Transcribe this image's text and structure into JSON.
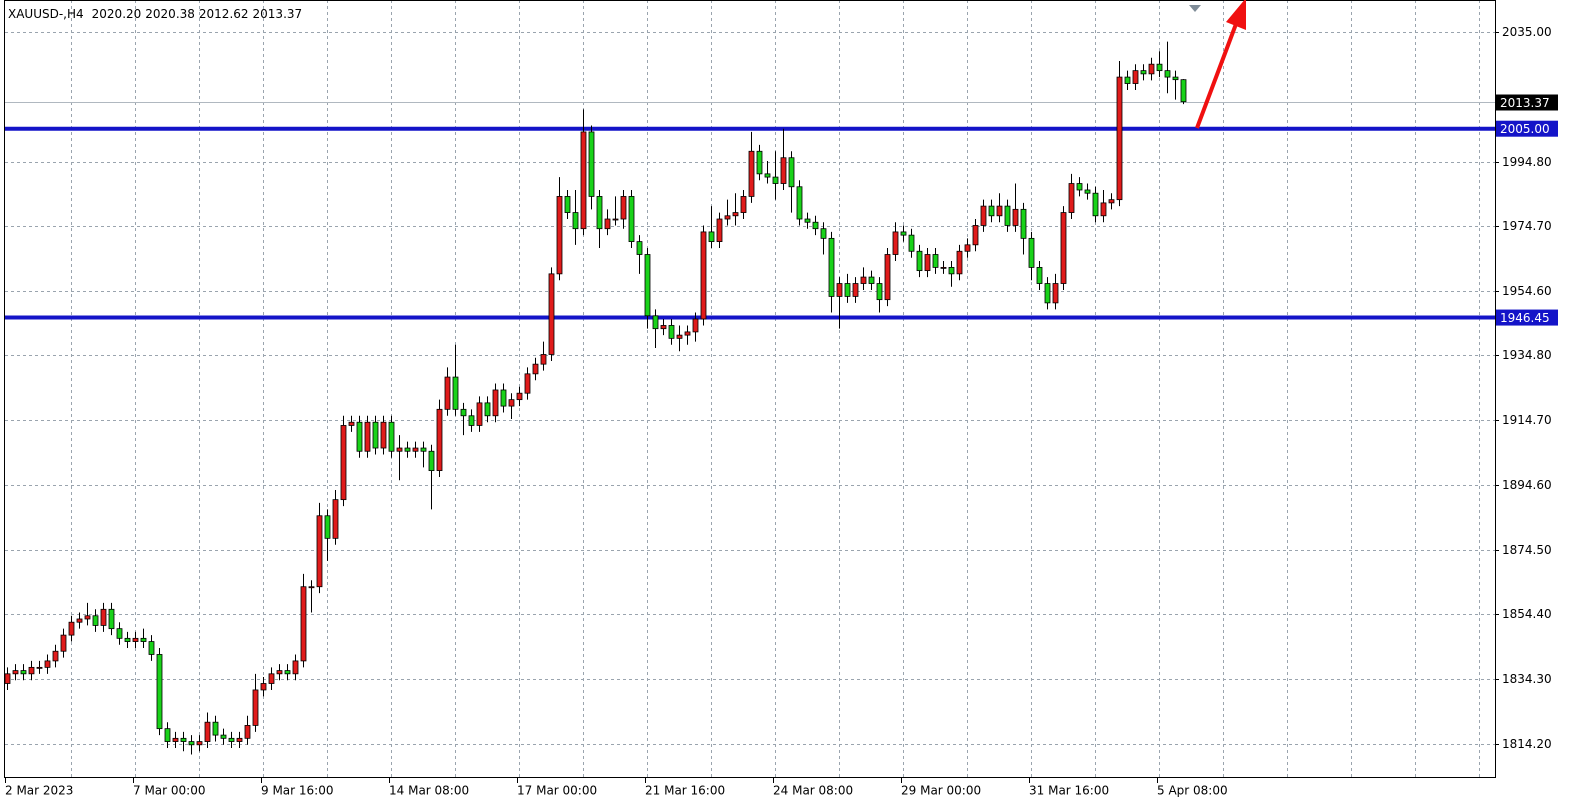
{
  "chart_data": {
    "type": "candlestick",
    "title": "XAUUSD-,H4",
    "last_labels": {
      "open": "2020.20",
      "high": "2020.38",
      "low": "2012.62",
      "close": "2013.37"
    },
    "up_color": "#e01b1b",
    "down_color": "#19d219",
    "categories": [
      "2 Mar 2023",
      null,
      null,
      null,
      null,
      null,
      null,
      null,
      null,
      null,
      null,
      null,
      null,
      null,
      null,
      null,
      "7 Mar 00:00",
      null,
      null,
      null,
      null,
      null,
      null,
      null,
      null,
      null,
      null,
      null,
      null,
      null,
      null,
      null,
      "9 Mar 16:00",
      null,
      null,
      null,
      null,
      null,
      null,
      null,
      null,
      null,
      null,
      null,
      null,
      null,
      null,
      null,
      "14 Mar 08:00",
      null,
      null,
      null,
      null,
      null,
      null,
      null,
      null,
      null,
      null,
      null,
      null,
      null,
      null,
      null,
      "17 Mar 00:00",
      null,
      null,
      null,
      null,
      null,
      null,
      null,
      null,
      null,
      null,
      null,
      null,
      null,
      null,
      null,
      "21 Mar 16:00",
      null,
      null,
      null,
      null,
      null,
      null,
      null,
      null,
      null,
      null,
      null,
      null,
      null,
      null,
      null,
      "24 Mar 08:00",
      null,
      null,
      null,
      null,
      null,
      null,
      null,
      null,
      null,
      null,
      null,
      null,
      null,
      null,
      null,
      "29 Mar 00:00",
      null,
      null,
      null,
      null,
      null,
      null,
      null,
      null,
      null,
      null,
      null,
      null,
      null,
      null,
      null,
      "31 Mar 16:00",
      null,
      null,
      null,
      null,
      null,
      null,
      null,
      null,
      null,
      null,
      null,
      null,
      null,
      null,
      null,
      "5 Apr 08:00",
      null,
      null,
      null
    ],
    "series": [
      {
        "name": "XAUUSD-,H4",
        "open": [
          1833,
          1836,
          1837,
          1836,
          1838,
          1838,
          1840,
          1843,
          1848,
          1852,
          1853,
          1854,
          1851,
          1856,
          1850,
          1847,
          1846,
          1847,
          1846,
          1842,
          1819,
          1815,
          1816,
          1815,
          1814,
          1815,
          1821,
          1817,
          1816,
          1815,
          1816,
          1820,
          1831,
          1833,
          1836,
          1837,
          1836,
          1840,
          1863,
          1863,
          1885,
          1878,
          1890,
          1913,
          1914,
          1905,
          1914,
          1906,
          1914,
          1905,
          1906,
          1905,
          1906,
          1905,
          1899,
          1918,
          1928,
          1918,
          1916,
          1913,
          1920,
          1916,
          1924,
          1919,
          1921,
          1923,
          1929,
          1932,
          1935,
          1960,
          1984,
          1979,
          1974,
          2004,
          1984,
          1974,
          1977,
          1977,
          1984,
          1970,
          1966,
          1947,
          1943,
          1944,
          1940,
          1941,
          1942,
          1946,
          1973,
          1970,
          1977,
          1978,
          1979,
          1984,
          1998,
          1991,
          1990,
          1988,
          1996,
          1987,
          1977,
          1976,
          1974,
          1971,
          1953,
          1957,
          1953,
          1957,
          1959,
          1957,
          1952,
          1966,
          1973,
          1972,
          1967,
          1961,
          1966,
          1962,
          1962,
          1960,
          1967,
          1969,
          1975,
          1981,
          1978,
          1981,
          1975,
          1980,
          1971,
          1962,
          1957,
          1951,
          1957,
          1979,
          1988,
          1986,
          1985,
          1978,
          1982,
          1983,
          2021,
          2019,
          2023,
          2022,
          2025,
          2023,
          2021,
          2020.2
        ],
        "high": [
          1838,
          1839,
          1839,
          1840,
          1840,
          1842,
          1845,
          1850,
          1854,
          1855,
          1858,
          1856,
          1858,
          1858,
          1852,
          1849,
          1849,
          1850,
          1848,
          1844,
          1821,
          1818,
          1818,
          1817,
          1817,
          1824,
          1823,
          1819,
          1818,
          1818,
          1823,
          1836,
          1835,
          1838,
          1839,
          1839,
          1842,
          1867,
          1865,
          1889,
          1887,
          1893,
          1916,
          1916,
          1916,
          1916,
          1916,
          1916,
          1916,
          1910,
          1908,
          1908,
          1908,
          1907,
          1921,
          1931,
          1938,
          1920,
          1918,
          1922,
          1922,
          1926,
          1926,
          1923,
          1925,
          1931,
          1934,
          1939,
          1962,
          1990,
          1986,
          1986,
          2011,
          2006,
          1986,
          1980,
          1984,
          1986,
          1986,
          1972,
          1968,
          1949,
          1946,
          1946,
          1944,
          1944,
          1948,
          1975,
          1981,
          1979,
          1983,
          1985,
          1986,
          2004,
          2000,
          1995,
          1998,
          2005,
          1998,
          1989,
          1979,
          1978,
          1976,
          1973,
          1959,
          1960,
          1959,
          1962,
          1961,
          1959,
          1968,
          1976,
          1975,
          1974,
          1969,
          1968,
          1968,
          1964,
          1964,
          1969,
          1971,
          1977,
          1983,
          1983,
          1985,
          1983,
          1988,
          1982,
          1973,
          1964,
          1959,
          1960,
          1981,
          1991,
          1990,
          1988,
          1987,
          1986,
          1985,
          2026,
          2023,
          2025,
          2025,
          2027,
          2029,
          2032,
          2023,
          2020.38
        ],
        "low": [
          1831,
          1834,
          1834,
          1834,
          1836,
          1836,
          1838,
          1841,
          1846,
          1850,
          1851,
          1849,
          1849,
          1848,
          1845,
          1844,
          1844,
          1844,
          1840,
          1817,
          1813,
          1813,
          1812,
          1811,
          1812,
          1813,
          1815,
          1814,
          1813,
          1813,
          1814,
          1818,
          1829,
          1831,
          1834,
          1834,
          1834,
          1838,
          1855,
          1861,
          1871,
          1876,
          1888,
          1911,
          1903,
          1903,
          1904,
          1904,
          1903,
          1896,
          1903,
          1903,
          1900,
          1887,
          1897,
          1916,
          1916,
          1910,
          1911,
          1911,
          1914,
          1914,
          1917,
          1915,
          1919,
          1921,
          1927,
          1930,
          1933,
          1958,
          1977,
          1969,
          1972,
          1980,
          1968,
          1972,
          1975,
          1974,
          1968,
          1960,
          1943,
          1937,
          1941,
          1938,
          1936,
          1938,
          1939,
          1944,
          1968,
          1968,
          1975,
          1975,
          1977,
          1982,
          1989,
          1988,
          1983,
          1986,
          1979,
          1975,
          1974,
          1972,
          1966,
          1948,
          1943,
          1951,
          1951,
          1955,
          1955,
          1948,
          1950,
          1964,
          1970,
          1965,
          1959,
          1959,
          1960,
          1960,
          1956,
          1958,
          1965,
          1967,
          1973,
          1976,
          1976,
          1973,
          1973,
          1966,
          1958,
          1955,
          1949,
          1949,
          1955,
          1977,
          1984,
          1983,
          1976,
          1976,
          1980,
          1981,
          2017,
          2017,
          2020,
          2020,
          2021,
          2016,
          2014,
          2012.62
        ],
        "close": [
          1836,
          1837,
          1836,
          1838,
          1838,
          1840,
          1843,
          1848,
          1852,
          1853,
          1854,
          1851,
          1856,
          1850,
          1847,
          1846,
          1847,
          1846,
          1842,
          1819,
          1815,
          1816,
          1815,
          1814,
          1815,
          1821,
          1817,
          1816,
          1815,
          1816,
          1820,
          1831,
          1833,
          1836,
          1837,
          1836,
          1840,
          1863,
          1863,
          1885,
          1878,
          1890,
          1913,
          1914,
          1905,
          1914,
          1906,
          1914,
          1905,
          1906,
          1905,
          1906,
          1905,
          1899,
          1918,
          1928,
          1918,
          1916,
          1913,
          1920,
          1916,
          1924,
          1919,
          1921,
          1923,
          1929,
          1932,
          1935,
          1960,
          1984,
          1979,
          1974,
          2004,
          1984,
          1974,
          1977,
          1977,
          1984,
          1970,
          1966,
          1947,
          1943,
          1944,
          1940,
          1941,
          1942,
          1946,
          1973,
          1970,
          1977,
          1978,
          1979,
          1984,
          1998,
          1991,
          1990,
          1988,
          1996,
          1987,
          1977,
          1976,
          1974,
          1971,
          1953,
          1957,
          1953,
          1957,
          1959,
          1957,
          1952,
          1966,
          1973,
          1972,
          1967,
          1961,
          1966,
          1962,
          1962,
          1960,
          1967,
          1969,
          1975,
          1981,
          1978,
          1981,
          1975,
          1980,
          1971,
          1962,
          1957,
          1951,
          1957,
          1979,
          1988,
          1986,
          1985,
          1978,
          1982,
          1983,
          2021,
          2019,
          2023,
          2022,
          2025,
          2023,
          2021,
          2020.2,
          2013.37
        ]
      }
    ],
    "ylim": [
      1803.7,
      2044.9
    ],
    "yticks": [
      {
        "value": 2035,
        "label": "2035.00"
      },
      {
        "value": 1994.8,
        "label": "1994.80"
      },
      {
        "value": 1974.7,
        "label": "1974.70"
      },
      {
        "value": 1954.6,
        "label": "1954.60"
      },
      {
        "value": 1934.8,
        "label": "1934.80"
      },
      {
        "value": 1914.7,
        "label": "1914.70"
      },
      {
        "value": 1894.6,
        "label": "1894.60"
      },
      {
        "value": 1874.5,
        "label": "1874.50"
      },
      {
        "value": 1854.4,
        "label": "1854.40"
      },
      {
        "value": 1834.3,
        "label": "1834.30"
      },
      {
        "value": 1814.2,
        "label": "1814.20"
      }
    ],
    "grid": true,
    "price_line": {
      "value": 2013.37,
      "label": "2013.37",
      "color": "#000000"
    },
    "levels": [
      {
        "value": 2005,
        "label": "2005.00",
        "color": "#1414c8"
      },
      {
        "value": 1946.45,
        "label": "1946.45",
        "color": "#1414c8"
      }
    ]
  }
}
